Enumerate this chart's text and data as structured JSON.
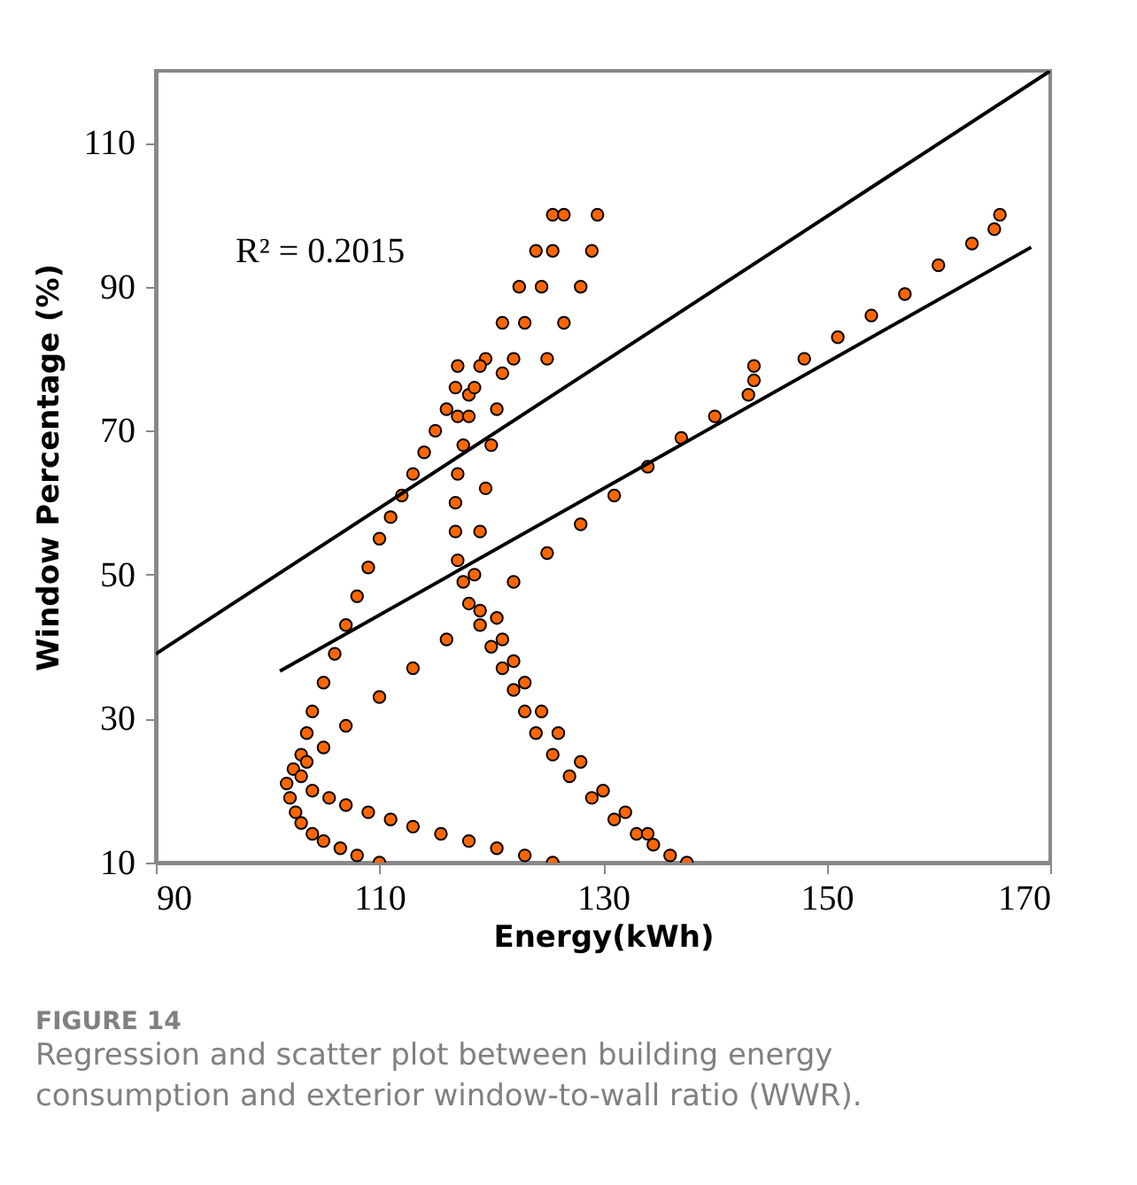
{
  "chart_data": {
    "type": "scatter",
    "xlabel": "Energy(kWh)",
    "ylabel": "Window Percentage (%)",
    "xlim": [
      90,
      170
    ],
    "ylim": [
      10,
      120
    ],
    "xticks": [
      90,
      110,
      130,
      150,
      170
    ],
    "yticks": [
      10,
      30,
      50,
      70,
      90,
      110
    ],
    "grid": false,
    "line_style": "solid",
    "annotations": [
      "R² = 0.2015",
      "FIGURE 14",
      "Regression and scatter plot between building energy consumption and exterior window-to-wall ratio (WWR)."
    ],
    "series": [
      {
        "marker": "circle",
        "color": "#ff6600",
        "x": [
          110,
          108,
          106.5,
          105,
          104,
          103,
          102.5,
          102,
          101.7,
          102.3,
          103,
          103.5,
          104,
          105,
          106,
          107,
          108,
          109,
          110,
          111,
          112,
          113,
          114,
          115,
          116,
          116.8,
          117,
          117,
          118,
          119.5,
          121,
          122.5,
          124,
          125.5,
          125.5,
          123,
          120.5,
          118,
          115.5,
          113,
          111,
          109,
          107,
          105.5,
          104,
          103,
          103.5,
          105,
          107,
          110,
          113,
          116,
          119,
          122,
          125,
          128,
          131,
          134,
          137,
          140,
          143,
          143.5,
          143.5,
          148,
          151,
          154,
          157,
          160,
          163,
          165,
          165.5,
          137.5,
          136,
          134.5,
          133,
          131,
          129,
          127,
          125.5,
          124,
          123,
          122,
          121,
          120,
          119,
          118,
          117.5,
          117,
          116.8,
          116.8,
          117,
          117.5,
          118,
          118.5,
          119,
          120.5,
          121,
          122,
          123,
          124.5,
          126,
          128,
          130,
          132,
          134,
          118.5,
          119,
          119.5,
          120,
          120.5,
          121,
          122,
          123,
          124.5,
          125.5,
          126.5,
          125,
          126.5,
          128,
          129,
          129.5
        ],
        "values": [
          10,
          11,
          12,
          13,
          14,
          15.5,
          17,
          19,
          21,
          23,
          25,
          28,
          31,
          35,
          39,
          43,
          47,
          51,
          55,
          58,
          61,
          64,
          67,
          70,
          73,
          76,
          79,
          72,
          75,
          80,
          85,
          90,
          95,
          100,
          10,
          11,
          12,
          13,
          14,
          15,
          16,
          17,
          18,
          19,
          20,
          22,
          24,
          26,
          29,
          33,
          37,
          41,
          45,
          49,
          53,
          57,
          61,
          65,
          69,
          72,
          75,
          77,
          79,
          80,
          83,
          86,
          89,
          93,
          96,
          98,
          100,
          10,
          11,
          12.5,
          14,
          16,
          19,
          22,
          25,
          28,
          31,
          34,
          37,
          40,
          43,
          46,
          49,
          52,
          56,
          60,
          64,
          68,
          72,
          76,
          79,
          44,
          41,
          38,
          35,
          31,
          28,
          24,
          20,
          17,
          14,
          50,
          56,
          62,
          68,
          73,
          78,
          80,
          85,
          90,
          95,
          100,
          80,
          85,
          90,
          95,
          100
        ]
      },
      {
        "type": "line",
        "color": "#000000",
        "x": [
          90,
          170
        ],
        "values": [
          39,
          120
        ]
      },
      {
        "type": "line",
        "color": "#000000",
        "x": [
          101.1,
          168.3
        ],
        "values": [
          36.6,
          95.5
        ]
      }
    ]
  }
}
